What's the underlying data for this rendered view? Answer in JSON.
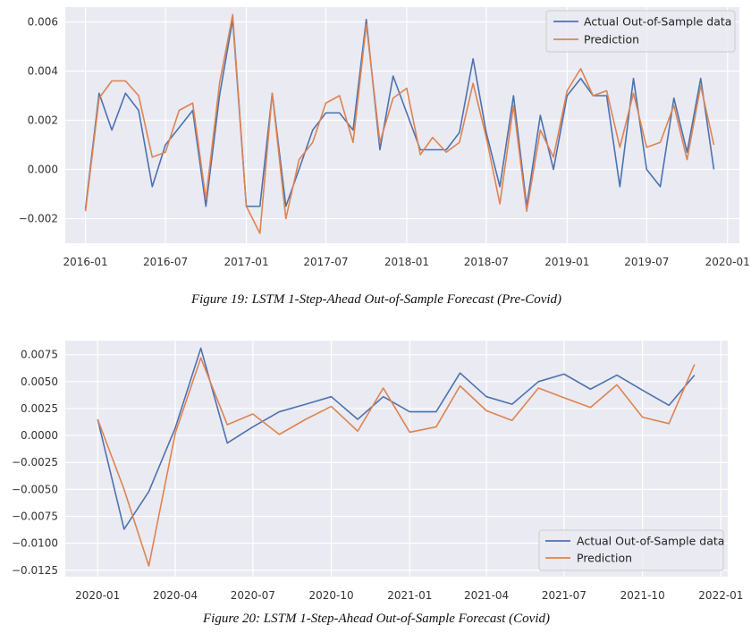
{
  "colors": {
    "actual": "#4c72b0",
    "prediction": "#dd8452",
    "plot_background": "#eaeaf2",
    "grid": "#ffffff"
  },
  "chart_data": [
    {
      "type": "line",
      "caption": "Figure 19: LSTM 1-Step-Ahead Out-of-Sample Forecast (Pre-Covid)",
      "grid": true,
      "legend_position": "top-right",
      "xlim": [
        "2015-11-16",
        "2020-01-28"
      ],
      "ylim": [
        -0.003,
        0.0066
      ],
      "x_ticks": [
        "2016-01",
        "2016-07",
        "2017-01",
        "2017-07",
        "2018-01",
        "2018-07",
        "2019-01",
        "2019-07",
        "2020-01"
      ],
      "y_ticks": [
        -0.002,
        0.0,
        0.002,
        0.004,
        0.006
      ],
      "y_tick_labels": [
        "−0.002",
        "0.000",
        "0.002",
        "0.004",
        "0.006"
      ],
      "x": [
        "2016-01",
        "2016-02",
        "2016-03",
        "2016-04",
        "2016-05",
        "2016-06",
        "2016-07",
        "2016-08",
        "2016-09",
        "2016-10",
        "2016-11",
        "2016-12",
        "2017-01",
        "2017-02",
        "2017-03",
        "2017-04",
        "2017-05",
        "2017-06",
        "2017-07",
        "2017-08",
        "2017-09",
        "2017-10",
        "2017-11",
        "2017-12",
        "2018-01",
        "2018-02",
        "2018-03",
        "2018-04",
        "2018-05",
        "2018-06",
        "2018-07",
        "2018-08",
        "2018-09",
        "2018-10",
        "2018-11",
        "2018-12",
        "2019-01",
        "2019-02",
        "2019-03",
        "2019-04",
        "2019-05",
        "2019-06",
        "2019-07",
        "2019-08",
        "2019-09",
        "2019-10",
        "2019-11",
        "2019-12"
      ],
      "series": [
        {
          "name": "Actual Out-of-Sample data",
          "color_key": "actual",
          "values": [
            -0.0016,
            0.0031,
            0.0016,
            0.0031,
            0.0024,
            -0.0007,
            0.001,
            0.0017,
            0.0024,
            -0.0015,
            0.003,
            0.0061,
            -0.0015,
            -0.0015,
            0.0031,
            -0.0015,
            0.0,
            0.0016,
            0.0023,
            0.0023,
            0.0016,
            0.0061,
            0.0008,
            0.0038,
            0.0023,
            0.0008,
            0.0008,
            0.0008,
            0.0015,
            0.0045,
            0.0015,
            -0.0007,
            0.003,
            -0.0015,
            0.0022,
            0.0,
            0.003,
            0.0037,
            0.003,
            0.003,
            -0.0007,
            0.0037,
            0.0,
            -0.0007,
            0.0029,
            0.0007,
            0.0037,
            0.0
          ]
        },
        {
          "name": "Prediction",
          "color_key": "prediction",
          "values": [
            -0.0017,
            0.0029,
            0.0036,
            0.0036,
            0.003,
            0.0005,
            0.0007,
            0.0024,
            0.0027,
            -0.0012,
            0.0035,
            0.0063,
            -0.0015,
            -0.0026,
            0.0031,
            -0.002,
            0.0004,
            0.0011,
            0.0027,
            0.003,
            0.0011,
            0.0059,
            0.0011,
            0.0029,
            0.0033,
            0.0006,
            0.0013,
            0.0007,
            0.0011,
            0.0035,
            0.0013,
            -0.0014,
            0.0026,
            -0.0017,
            0.0016,
            0.0005,
            0.0032,
            0.0041,
            0.003,
            0.0032,
            0.0009,
            0.0031,
            0.0009,
            0.0011,
            0.0026,
            0.0004,
            0.0034,
            0.001
          ]
        }
      ]
    },
    {
      "type": "line",
      "caption": "Figure 20: LSTM 1-Step-Ahead Out-of-Sample Forecast (Covid)",
      "grid": true,
      "legend_position": "bottom-right",
      "xlim": [
        "2019-11-24",
        "2022-01-09"
      ],
      "ylim": [
        -0.0131,
        0.0088
      ],
      "x_ticks": [
        "2020-01",
        "2020-04",
        "2020-07",
        "2020-10",
        "2021-01",
        "2021-04",
        "2021-07",
        "2021-10",
        "2022-01"
      ],
      "y_ticks": [
        -0.0125,
        -0.01,
        -0.0075,
        -0.005,
        -0.0025,
        0.0,
        0.0025,
        0.005,
        0.0075
      ],
      "y_tick_labels": [
        "−0.0125",
        "−0.0100",
        "−0.0075",
        "−0.0050",
        "−0.0025",
        "0.0000",
        "0.0025",
        "0.0050",
        "0.0075"
      ],
      "x": [
        "2020-01",
        "2020-02",
        "2020-03",
        "2020-04",
        "2020-05",
        "2020-06",
        "2020-07",
        "2020-08",
        "2020-09",
        "2020-10",
        "2020-11",
        "2020-12",
        "2021-01",
        "2021-02",
        "2021-03",
        "2021-04",
        "2021-05",
        "2021-06",
        "2021-07",
        "2021-08",
        "2021-09",
        "2021-10",
        "2021-11",
        "2021-12"
      ],
      "series": [
        {
          "name": "Actual Out-of-Sample data",
          "color_key": "actual",
          "values": [
            0.0015,
            -0.0087,
            -0.0052,
            0.0007,
            0.0081,
            -0.0007,
            0.0008,
            0.0022,
            0.0029,
            0.0036,
            0.0015,
            0.0036,
            0.0022,
            0.0022,
            0.0058,
            0.0036,
            0.0029,
            0.005,
            0.0057,
            0.0043,
            0.0056,
            0.0042,
            0.0028,
            0.0056
          ]
        },
        {
          "name": "Prediction",
          "color_key": "prediction",
          "values": [
            0.0015,
            -0.005,
            -0.0121,
            0.0002,
            0.0072,
            0.001,
            0.002,
            0.0001,
            0.0015,
            0.0027,
            0.0004,
            0.0044,
            0.0003,
            0.0008,
            0.0046,
            0.0023,
            0.0014,
            0.0044,
            0.0035,
            0.0026,
            0.0047,
            0.0017,
            0.0011,
            0.0066
          ]
        }
      ]
    }
  ]
}
